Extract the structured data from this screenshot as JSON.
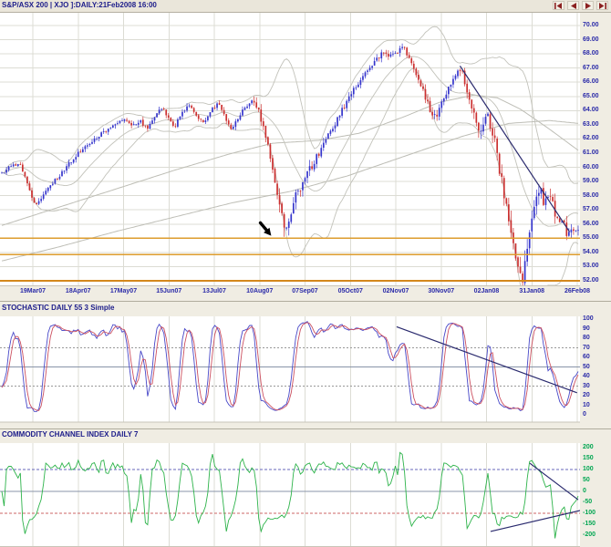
{
  "window": {
    "title": "S&P/ASX 200 | XJO ]:DAILY:21Feb2008 16:00"
  },
  "toolbar": {
    "nav": [
      {
        "name": "first",
        "icon": "skip-to-start-icon"
      },
      {
        "name": "prev",
        "icon": "step-back-icon"
      },
      {
        "name": "next",
        "icon": "step-forward-icon"
      },
      {
        "name": "last",
        "icon": "skip-to-end-icon"
      }
    ]
  },
  "colors": {
    "background": "#f0ede3",
    "plot_bg": "#ffffff",
    "grid": "#dcdcd4",
    "axis_text_blue": "#2a2aa8",
    "axis_text_green": "#00a651",
    "candle_up": "#3535cc",
    "candle_down": "#cc3030",
    "band": "#c2c2ba",
    "long_ma": "#bdbdb5",
    "trendline": "#2a2a6e",
    "support": "#dd9c2e",
    "support_strong": "#d4881c",
    "stoch_k": "#4848c8",
    "stoch_d": "#cc5060",
    "cci_line": "#2db34a",
    "level_dotted": "#999999",
    "level_mid": "#8894a8",
    "cci_upper": "#6666bb",
    "cci_lower": "#cc6666",
    "annotation": "#000000",
    "nav_icon": "#8b2020"
  },
  "chart_data": [
    {
      "id": "price",
      "type": "candlestick",
      "title": "S&P/ASX 200 | XJO ]:DAILY:21Feb2008 16:00",
      "ylim": [
        52,
        70
      ],
      "y_ticks": [
        "70.00",
        "69.00",
        "68.00",
        "67.00",
        "66.00",
        "65.00",
        "64.00",
        "63.00",
        "62.00",
        "61.00",
        "60.00",
        "59.00",
        "58.00",
        "57.00",
        "56.00",
        "55.00",
        "54.00",
        "53.00",
        "52.00"
      ],
      "x_ticks": [
        "19Mar07",
        "18Apr07",
        "17May07",
        "15Jun07",
        "13Jul07",
        "10Aug07",
        "07Sep07",
        "05Oct07",
        "02Nov07",
        "30Nov07",
        "02Jan08",
        "31Jan08",
        "26Feb08"
      ],
      "support_levels": [
        {
          "value": 55.0,
          "strong": false
        },
        {
          "value": 53.85,
          "strong": false
        },
        {
          "value": 52.0,
          "strong": true
        }
      ],
      "trendline": {
        "x1": 0.795,
        "v1": 67.15,
        "x2": 0.985,
        "v2": 55.45
      },
      "arrow": {
        "t": 0.467,
        "v": 55.2,
        "rot": -40,
        "len": 14
      },
      "n": 250,
      "seed": 13,
      "close_path": [
        [
          0,
          59.6
        ],
        [
          0.015,
          60.1
        ],
        [
          0.03,
          60.3
        ],
        [
          0.045,
          58.9
        ],
        [
          0.058,
          57.2
        ],
        [
          0.07,
          57.9
        ],
        [
          0.085,
          58.8
        ],
        [
          0.1,
          59.4
        ],
        [
          0.115,
          60.2
        ],
        [
          0.13,
          60.9
        ],
        [
          0.15,
          61.6
        ],
        [
          0.17,
          62.3
        ],
        [
          0.185,
          62.7
        ],
        [
          0.2,
          63.1
        ],
        [
          0.215,
          63.4
        ],
        [
          0.228,
          62.9
        ],
        [
          0.24,
          63.3
        ],
        [
          0.252,
          62.7
        ],
        [
          0.265,
          63.6
        ],
        [
          0.278,
          64.2
        ],
        [
          0.29,
          63.4
        ],
        [
          0.3,
          62.9
        ],
        [
          0.312,
          63.8
        ],
        [
          0.325,
          64.5
        ],
        [
          0.338,
          63.6
        ],
        [
          0.35,
          63.1
        ],
        [
          0.362,
          63.9
        ],
        [
          0.375,
          64.6
        ],
        [
          0.388,
          63.4
        ],
        [
          0.398,
          62.6
        ],
        [
          0.408,
          63.3
        ],
        [
          0.42,
          64.1
        ],
        [
          0.432,
          64.6
        ],
        [
          0.443,
          64.3
        ],
        [
          0.452,
          63.1
        ],
        [
          0.46,
          61.9
        ],
        [
          0.468,
          60.4
        ],
        [
          0.475,
          58.9
        ],
        [
          0.482,
          57.4
        ],
        [
          0.489,
          56.2
        ],
        [
          0.495,
          55.3
        ],
        [
          0.5,
          56.4
        ],
        [
          0.507,
          57.6
        ],
        [
          0.515,
          58.4
        ],
        [
          0.525,
          59.1
        ],
        [
          0.535,
          59.9
        ],
        [
          0.545,
          60.6
        ],
        [
          0.555,
          61.4
        ],
        [
          0.565,
          62.2
        ],
        [
          0.578,
          63.1
        ],
        [
          0.59,
          64
        ],
        [
          0.602,
          64.9
        ],
        [
          0.615,
          65.8
        ],
        [
          0.628,
          66.5
        ],
        [
          0.64,
          67.1
        ],
        [
          0.652,
          67.7
        ],
        [
          0.662,
          68.2
        ],
        [
          0.672,
          67.8
        ],
        [
          0.682,
          68
        ],
        [
          0.695,
          68.5
        ],
        [
          0.705,
          67.9
        ],
        [
          0.715,
          67
        ],
        [
          0.725,
          66
        ],
        [
          0.735,
          64.9
        ],
        [
          0.745,
          63.9
        ],
        [
          0.752,
          63.5
        ],
        [
          0.762,
          64.4
        ],
        [
          0.772,
          65.3
        ],
        [
          0.782,
          66.2
        ],
        [
          0.792,
          66.9
        ],
        [
          0.8,
          66.5
        ],
        [
          0.808,
          65.4
        ],
        [
          0.815,
          64.3
        ],
        [
          0.822,
          63.3
        ],
        [
          0.828,
          62.6
        ],
        [
          0.835,
          63.2
        ],
        [
          0.842,
          63.6
        ],
        [
          0.848,
          62.9
        ],
        [
          0.855,
          61.8
        ],
        [
          0.862,
          60.2
        ],
        [
          0.87,
          58.4
        ],
        [
          0.878,
          56.6
        ],
        [
          0.886,
          54.9
        ],
        [
          0.893,
          53.4
        ],
        [
          0.9,
          52.6
        ],
        [
          0.905,
          52.2
        ],
        [
          0.91,
          53.8
        ],
        [
          0.915,
          55.4
        ],
        [
          0.92,
          56.6
        ],
        [
          0.925,
          57.6
        ],
        [
          0.93,
          58.3
        ],
        [
          0.935,
          58.6
        ],
        [
          0.94,
          57.2
        ],
        [
          0.945,
          57.8
        ],
        [
          0.95,
          58.3
        ],
        [
          0.955,
          57.5
        ],
        [
          0.96,
          56.8
        ],
        [
          0.965,
          56.2
        ],
        [
          0.97,
          56.6
        ],
        [
          0.975,
          56
        ],
        [
          0.98,
          55.4
        ],
        [
          0.985,
          55.8
        ],
        [
          0.99,
          55.3
        ],
        [
          0.995,
          55.5
        ],
        [
          1,
          55.6
        ]
      ],
      "volatility": [
        [
          0,
          0.5
        ],
        [
          0.3,
          0.5
        ],
        [
          0.42,
          0.55
        ],
        [
          0.46,
          1
        ],
        [
          0.49,
          1.5
        ],
        [
          0.53,
          1.2
        ],
        [
          0.57,
          0.7
        ],
        [
          0.68,
          0.6
        ],
        [
          0.74,
          0.9
        ],
        [
          0.79,
          0.8
        ],
        [
          0.83,
          1.3
        ],
        [
          0.87,
          1.6
        ],
        [
          0.91,
          1.7
        ],
        [
          0.94,
          1.3
        ],
        [
          1,
          1
        ]
      ],
      "overlays": {
        "bollinger_period": 20,
        "bollinger_k": 2,
        "long_ma_1": [
          [
            0,
            55.9
          ],
          [
            0.1,
            57.2
          ],
          [
            0.2,
            58.5
          ],
          [
            0.3,
            59.8
          ],
          [
            0.4,
            61
          ],
          [
            0.47,
            61.7
          ],
          [
            0.55,
            61.9
          ],
          [
            0.62,
            62.4
          ],
          [
            0.7,
            63.6
          ],
          [
            0.76,
            64.6
          ],
          [
            0.82,
            65.1
          ],
          [
            0.86,
            64.9
          ],
          [
            0.9,
            64.1
          ],
          [
            0.95,
            62.7
          ],
          [
            1,
            61.2
          ]
        ],
        "long_ma_2": [
          [
            0,
            53.4
          ],
          [
            0.1,
            54.4
          ],
          [
            0.2,
            55.5
          ],
          [
            0.3,
            56.5
          ],
          [
            0.4,
            57.5
          ],
          [
            0.5,
            58.3
          ],
          [
            0.6,
            59.4
          ],
          [
            0.7,
            60.8
          ],
          [
            0.8,
            62.2
          ],
          [
            0.88,
            63.1
          ],
          [
            0.95,
            63.3
          ],
          [
            1,
            63.1
          ]
        ]
      }
    },
    {
      "id": "stochastic",
      "type": "line",
      "title": "STOCHASTIC DAILY 55 3 Simple",
      "ylim": [
        0,
        100
      ],
      "y_ticks": [
        "100",
        "90",
        "80",
        "70",
        "60",
        "50",
        "40",
        "30",
        "20",
        "10",
        "0"
      ],
      "levels": {
        "upper": 70,
        "mid": 50,
        "lower": 30
      },
      "params": {
        "k_period": 5,
        "smooth": 3,
        "d_period": 3
      },
      "trendline": {
        "x1": 0.685,
        "v1": 92,
        "x2": 0.998,
        "v2": 23
      }
    },
    {
      "id": "cci",
      "type": "line",
      "title": "COMMODITY CHANNEL INDEX DAILY 7",
      "ylim": [
        -200,
        200
      ],
      "y_ticks": [
        "200",
        "150",
        "100",
        "50",
        "0",
        "-50",
        "-100",
        "-150",
        "-200"
      ],
      "levels": {
        "upper": 100,
        "zero": 0,
        "lower": -100
      },
      "period": 7,
      "trendlines": [
        {
          "x1": 0.916,
          "v1": 128,
          "x2": 1.0,
          "v2": -38
        },
        {
          "x1": 0.848,
          "v1": -182,
          "x2": 1.005,
          "v2": -86
        }
      ],
      "arrows": [
        {
          "t": 0.918,
          "v": 124,
          "rot": 35,
          "len": 13
        },
        {
          "t": 0.96,
          "v": 36,
          "rot": 30,
          "len": 13
        },
        {
          "t": 0.851,
          "v": -176,
          "rot": 185,
          "len": 13
        },
        {
          "t": 0.897,
          "v": -162,
          "rot": 180,
          "len": 12
        },
        {
          "t": 0.972,
          "v": -132,
          "rot": 165,
          "len": 15
        }
      ]
    }
  ]
}
